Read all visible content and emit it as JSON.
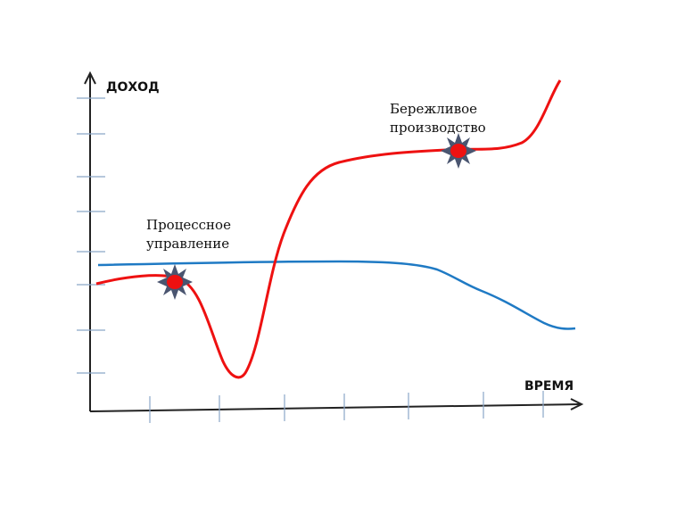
{
  "axes": {
    "y_label": "ДОХОД",
    "x_label": "ВРЕМЯ"
  },
  "annotations": {
    "process": {
      "line1": "Процессное",
      "line2": "управление"
    },
    "lean": {
      "line1": "Бережливое",
      "line2": "производство"
    }
  },
  "colors": {
    "axis": "#222222",
    "ticks": "#8aa6c8",
    "income_curve": "#ee1111",
    "baseline_curve": "#1f7ac4",
    "marker_fill": "#ee1111",
    "marker_star": "#4a5570"
  }
}
